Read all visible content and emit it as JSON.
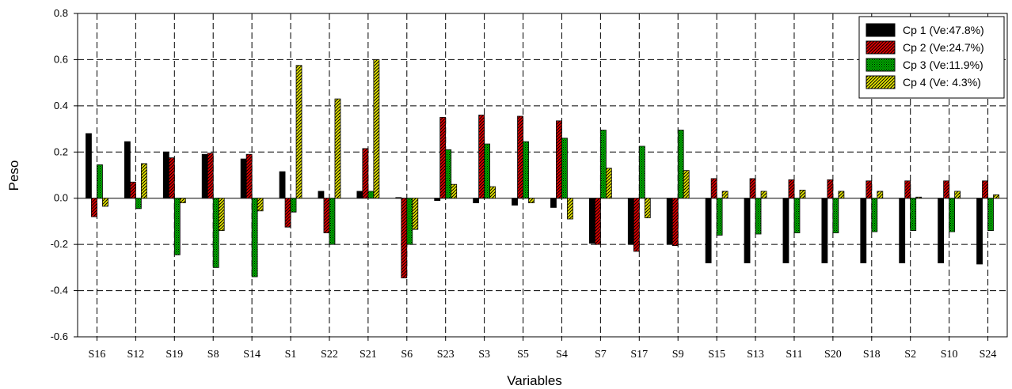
{
  "chart_data": {
    "type": "bar",
    "title": "",
    "xlabel": "Variables",
    "ylabel": "Peso",
    "ylim": [
      -0.6,
      0.8
    ],
    "yticks": [
      -0.6,
      -0.4,
      -0.2,
      0.0,
      0.2,
      0.4,
      0.6,
      0.8
    ],
    "ytick_labels": [
      "-0.6",
      "-0.4",
      "-0.2",
      "0.0",
      "0.2",
      "0.4",
      "0.6",
      "0.8"
    ],
    "grid": true,
    "legend_position": "top-right",
    "categories": [
      "S16",
      "S12",
      "S19",
      "S8",
      "S14",
      "S1",
      "S22",
      "S21",
      "S6",
      "S23",
      "S3",
      "S5",
      "S4",
      "S7",
      "S17",
      "S9",
      "S15",
      "S13",
      "S11",
      "S20",
      "S18",
      "S2",
      "S10",
      "S24"
    ],
    "series": [
      {
        "name": "Cp 1 (Ve:47.8%)",
        "color": "#000000",
        "pattern": "solid",
        "values": [
          0.28,
          0.245,
          0.2,
          0.19,
          0.17,
          0.115,
          0.03,
          0.03,
          0.003,
          -0.01,
          -0.02,
          -0.03,
          -0.04,
          -0.195,
          -0.2,
          -0.2,
          -0.28,
          -0.28,
          -0.28,
          -0.28,
          -0.28,
          -0.28,
          -0.28,
          -0.285
        ]
      },
      {
        "name": "Cp 2 (Ve:24.7%)",
        "color": "#e00000",
        "pattern": "diagonal-hatch",
        "values": [
          -0.08,
          0.07,
          0.175,
          0.195,
          0.19,
          -0.125,
          -0.15,
          0.215,
          -0.345,
          0.35,
          0.36,
          0.355,
          0.335,
          -0.2,
          -0.23,
          -0.205,
          0.085,
          0.085,
          0.08,
          0.08,
          0.075,
          0.075,
          0.075,
          0.075
        ]
      },
      {
        "name": "Cp 3 (Ve:11.9%)",
        "color": "#00b000",
        "pattern": "dotted",
        "values": [
          0.145,
          -0.045,
          -0.245,
          -0.3,
          -0.34,
          -0.06,
          -0.2,
          0.03,
          -0.2,
          0.21,
          0.235,
          0.245,
          0.26,
          0.295,
          0.225,
          0.295,
          -0.16,
          -0.155,
          -0.15,
          -0.15,
          -0.145,
          -0.14,
          -0.145,
          -0.14
        ]
      },
      {
        "name": "Cp 4 (Ve: 4.3%)",
        "color": "#e8e800",
        "pattern": "diagonal-hatch",
        "values": [
          -0.035,
          0.15,
          -0.02,
          -0.14,
          -0.055,
          0.575,
          0.43,
          0.6,
          -0.135,
          0.06,
          0.05,
          -0.02,
          -0.09,
          0.13,
          -0.085,
          0.12,
          0.03,
          0.03,
          0.035,
          0.03,
          0.03,
          0.005,
          0.03,
          0.015
        ]
      }
    ]
  }
}
